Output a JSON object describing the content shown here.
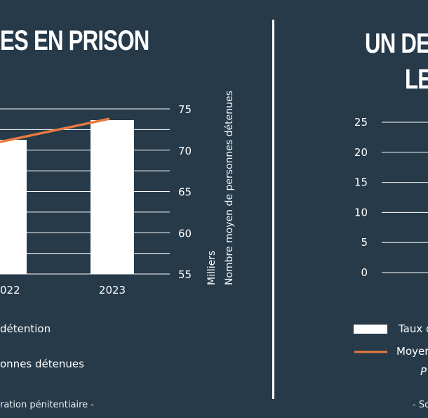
{
  "left_panel": {
    "title": "ES EN PRISON",
    "legend": [
      "détention",
      "onnes détenues"
    ],
    "source": "ration pénitentiaire -"
  },
  "right_panel": {
    "title_line1": "UN DES",
    "title_line2": "LES",
    "legend": [
      "Taux d",
      "Moyer"
    ],
    "note": "P",
    "source": "- So"
  },
  "colors": {
    "background": "#263a4a",
    "bar": "#ffffff",
    "line": "#e8793f",
    "grid": "#ffffff"
  },
  "chart_data": [
    {
      "type": "bar",
      "categories": [
        "022",
        "2023"
      ],
      "series": [
        {
          "type": "bar",
          "values": [
            null,
            null
          ]
        },
        {
          "type": "line",
          "axis": "right",
          "values": [
            71,
            73.8
          ]
        }
      ],
      "right_axis": {
        "ticks": [
          "75",
          "70",
          "65",
          "60",
          "55"
        ],
        "ylim": [
          55,
          75
        ],
        "label_line1": "Milliers",
        "label_line2": "Nombre moyen de personnes détenues"
      },
      "grid": true
    },
    {
      "type": "bar",
      "y_ticks": [
        "25",
        "20",
        "15",
        "10",
        "5",
        "0"
      ],
      "ylim": [
        0,
        25
      ],
      "grid": true
    }
  ]
}
